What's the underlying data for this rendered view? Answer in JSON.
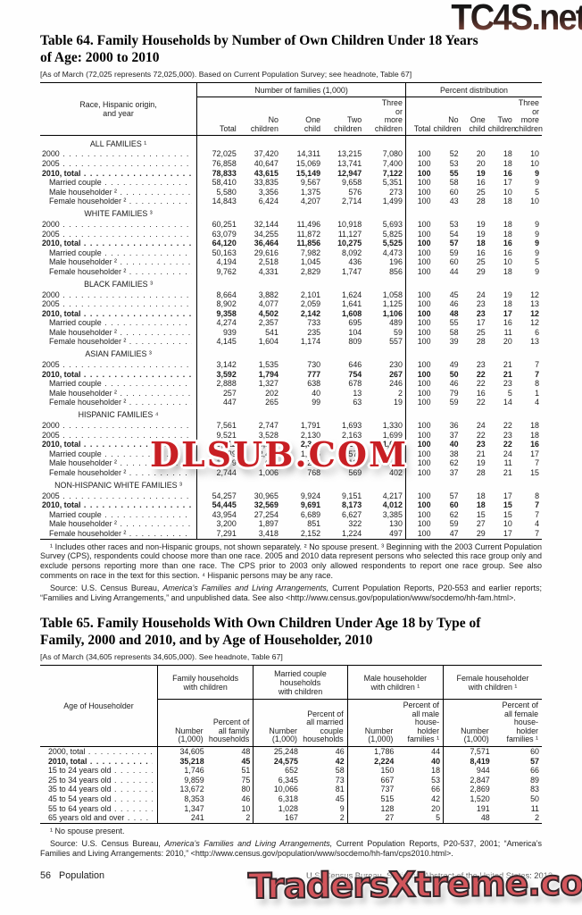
{
  "watermarks": {
    "top": "TC4S.net",
    "middle": "DLSUB.COM",
    "bottom": "TradersXtreme.com"
  },
  "table64": {
    "title": "Table 64. Family Households by Number of Own Children Under 18 Years\nof Age: 2000 to 2010",
    "headnote": "[As of March (72,025 represents 72,025,000). Based on Current Population Survey; see headnote, Table 67]",
    "stub_header": "Race, Hispanic origin,\nand year",
    "group_headers": [
      "Number of families (1,000)",
      "Percent distribution"
    ],
    "col_headers": [
      "Total",
      "No\nchildren",
      "One\nchild",
      "Two\nchildren",
      "Three\nor\nmore\nchildren"
    ],
    "sections": [
      {
        "header": "ALL FAMILIES ¹",
        "rows": [
          {
            "label": "2000",
            "indent": false,
            "bold": false,
            "values": [
              "72,025",
              "37,420",
              "14,311",
              "13,215",
              "7,080",
              "100",
              "52",
              "20",
              "18",
              "10"
            ]
          },
          {
            "label": "2005",
            "indent": false,
            "bold": false,
            "values": [
              "76,858",
              "40,647",
              "15,069",
              "13,741",
              "7,400",
              "100",
              "53",
              "20",
              "18",
              "10"
            ]
          },
          {
            "label": "2010, total",
            "indent": false,
            "bold": true,
            "values": [
              "78,833",
              "43,615",
              "15,149",
              "12,947",
              "7,122",
              "100",
              "55",
              "19",
              "16",
              "9"
            ]
          },
          {
            "label": "Married couple",
            "indent": true,
            "bold": false,
            "values": [
              "58,410",
              "33,835",
              "9,567",
              "9,658",
              "5,351",
              "100",
              "58",
              "16",
              "17",
              "9"
            ]
          },
          {
            "label": "Male householder ²",
            "indent": true,
            "bold": false,
            "values": [
              "5,580",
              "3,356",
              "1,375",
              "576",
              "273",
              "100",
              "60",
              "25",
              "10",
              "5"
            ]
          },
          {
            "label": "Female householder ²",
            "indent": true,
            "bold": false,
            "values": [
              "14,843",
              "6,424",
              "4,207",
              "2,714",
              "1,499",
              "100",
              "43",
              "28",
              "18",
              "10"
            ]
          }
        ]
      },
      {
        "header": "WHITE FAMILIES ³",
        "rows": [
          {
            "label": "2000",
            "indent": false,
            "bold": false,
            "values": [
              "60,251",
              "32,144",
              "11,496",
              "10,918",
              "5,693",
              "100",
              "53",
              "19",
              "18",
              "9"
            ]
          },
          {
            "label": "2005",
            "indent": false,
            "bold": false,
            "values": [
              "63,079",
              "34,255",
              "11,872",
              "11,127",
              "5,825",
              "100",
              "54",
              "19",
              "18",
              "9"
            ]
          },
          {
            "label": "2010, total",
            "indent": false,
            "bold": true,
            "values": [
              "64,120",
              "36,464",
              "11,856",
              "10,275",
              "5,525",
              "100",
              "57",
              "18",
              "16",
              "9"
            ]
          },
          {
            "label": "Married couple",
            "indent": true,
            "bold": false,
            "values": [
              "50,163",
              "29,616",
              "7,982",
              "8,092",
              "4,473",
              "100",
              "59",
              "16",
              "16",
              "9"
            ]
          },
          {
            "label": "Male householder ²",
            "indent": true,
            "bold": false,
            "values": [
              "4,194",
              "2,518",
              "1,045",
              "436",
              "196",
              "100",
              "60",
              "25",
              "10",
              "5"
            ]
          },
          {
            "label": "Female householder ²",
            "indent": true,
            "bold": false,
            "values": [
              "9,762",
              "4,331",
              "2,829",
              "1,747",
              "856",
              "100",
              "44",
              "29",
              "18",
              "9"
            ]
          }
        ]
      },
      {
        "header": "BLACK FAMILIES ³",
        "rows": [
          {
            "label": "2000",
            "indent": false,
            "bold": false,
            "values": [
              "8,664",
              "3,882",
              "2,101",
              "1,624",
              "1,058",
              "100",
              "45",
              "24",
              "19",
              "12"
            ]
          },
          {
            "label": "2005",
            "indent": false,
            "bold": false,
            "values": [
              "8,902",
              "4,077",
              "2,059",
              "1,641",
              "1,125",
              "100",
              "46",
              "23",
              "18",
              "13"
            ]
          },
          {
            "label": "2010, total",
            "indent": false,
            "bold": true,
            "values": [
              "9,358",
              "4,502",
              "2,142",
              "1,608",
              "1,106",
              "100",
              "48",
              "23",
              "17",
              "12"
            ]
          },
          {
            "label": "Married couple",
            "indent": true,
            "bold": false,
            "values": [
              "4,274",
              "2,357",
              "733",
              "695",
              "489",
              "100",
              "55",
              "17",
              "16",
              "12"
            ]
          },
          {
            "label": "Male householder ²",
            "indent": true,
            "bold": false,
            "values": [
              "939",
              "541",
              "235",
              "104",
              "59",
              "100",
              "58",
              "25",
              "11",
              "6"
            ]
          },
          {
            "label": "Female householder ²",
            "indent": true,
            "bold": false,
            "values": [
              "4,145",
              "1,604",
              "1,174",
              "809",
              "557",
              "100",
              "39",
              "28",
              "20",
              "13"
            ]
          }
        ]
      },
      {
        "header": "ASIAN FAMILIES ³",
        "rows": [
          {
            "label": "2005",
            "indent": false,
            "bold": false,
            "values": [
              "3,142",
              "1,535",
              "730",
              "646",
              "230",
              "100",
              "49",
              "23",
              "21",
              "7"
            ]
          },
          {
            "label": "2010, total",
            "indent": false,
            "bold": true,
            "values": [
              "3,592",
              "1,794",
              "777",
              "754",
              "267",
              "100",
              "50",
              "22",
              "21",
              "7"
            ]
          },
          {
            "label": "Married couple",
            "indent": true,
            "bold": false,
            "values": [
              "2,888",
              "1,327",
              "638",
              "678",
              "246",
              "100",
              "46",
              "22",
              "23",
              "8"
            ]
          },
          {
            "label": "Male householder ²",
            "indent": true,
            "bold": false,
            "values": [
              "257",
              "202",
              "40",
              "13",
              "2",
              "100",
              "79",
              "16",
              "5",
              "1"
            ]
          },
          {
            "label": "Female householder ²",
            "indent": true,
            "bold": false,
            "values": [
              "447",
              "265",
              "99",
              "63",
              "19",
              "100",
              "59",
              "22",
              "14",
              "4"
            ]
          }
        ]
      },
      {
        "header": "HISPANIC FAMILIES ⁴",
        "rows": [
          {
            "label": "2000",
            "indent": false,
            "bold": false,
            "values": [
              "7,561",
              "2,747",
              "1,791",
              "1,693",
              "1,330",
              "100",
              "36",
              "24",
              "22",
              "18"
            ]
          },
          {
            "label": "2005",
            "indent": false,
            "bold": false,
            "values": [
              "9,521",
              "3,528",
              "2,130",
              "2,163",
              "1,699",
              "100",
              "37",
              "22",
              "23",
              "18"
            ]
          },
          {
            "label": "2010, total",
            "indent": false,
            "bold": true,
            "values": [
              "10,412",
              "4,173",
              "2,344",
              "2,269",
              "1,626",
              "100",
              "40",
              "23",
              "22",
              "16"
            ]
          },
          {
            "label": "Married couple",
            "indent": true,
            "bold": false,
            "values": [
              "6,589",
              "2,497",
              "1,366",
              "1,576",
              "1,149",
              "100",
              "38",
              "21",
              "24",
              "17"
            ]
          },
          {
            "label": "Male householder ²",
            "indent": true,
            "bold": false,
            "values": [
              "1,079",
              "670",
              "210",
              "124",
              "75",
              "100",
              "62",
              "19",
              "11",
              "7"
            ]
          },
          {
            "label": "Female householder ²",
            "indent": true,
            "bold": false,
            "values": [
              "2,744",
              "1,006",
              "768",
              "569",
              "402",
              "100",
              "37",
              "28",
              "21",
              "15"
            ]
          }
        ]
      },
      {
        "header": "NON-HISPANIC WHITE FAMILIES ³",
        "rows": [
          {
            "label": "2005",
            "indent": false,
            "bold": false,
            "values": [
              "54,257",
              "30,965",
              "9,924",
              "9,151",
              "4,217",
              "100",
              "57",
              "18",
              "17",
              "8"
            ]
          },
          {
            "label": "2010, total",
            "indent": false,
            "bold": true,
            "values": [
              "54,445",
              "32,569",
              "9,691",
              "8,173",
              "4,012",
              "100",
              "60",
              "18",
              "15",
              "7"
            ]
          },
          {
            "label": "Married couple",
            "indent": true,
            "bold": false,
            "values": [
              "43,954",
              "27,254",
              "6,689",
              "6,627",
              "3,385",
              "100",
              "62",
              "15",
              "15",
              "7"
            ]
          },
          {
            "label": "Male householder ²",
            "indent": true,
            "bold": false,
            "values": [
              "3,200",
              "1,897",
              "851",
              "322",
              "130",
              "100",
              "59",
              "27",
              "10",
              "4"
            ]
          },
          {
            "label": "Female householder ²",
            "indent": true,
            "bold": false,
            "values": [
              "7,291",
              "3,418",
              "2,152",
              "1,224",
              "497",
              "100",
              "47",
              "29",
              "17",
              "7"
            ]
          }
        ]
      }
    ],
    "footnote": "¹ Includes other races and non-Hispanic groups, not shown separately. ² No spouse present. ³ Beginning with the 2003 Current Population Survey (CPS), respondents could choose more than one race. 2005 and 2010 data represent persons who selected this race group only and exclude persons reporting more than one race. The CPS prior to 2003 only allowed respondents to report one race group. See also comments on race in the text for this section. ⁴ Hispanic persons may be any race.",
    "source": {
      "prefix": "Source: U.S. Census Bureau, ",
      "italic": "America’s Families and Living Arrangements,",
      "suffix": " Current Population Reports, P20-553 and earlier reports; “Families and Living Arrangements,” and unpublished data. See also <http://www.census.gov/population/www/socdemo/hh-fam.html>."
    }
  },
  "table65": {
    "title": "Table 65. Family Households With Own Children Under Age 18 by Type of\nFamily, 2000 and 2010, and by Age of Householder, 2010",
    "headnote": "[As of March (34,605 represents 34,605,000). See headnote, Table 67]",
    "stub_header": "Age of Householder",
    "group_headers": [
      "Family households\nwith children",
      "Married couple\nhouseholds\nwith children",
      "Male householder\nwith children ¹",
      "Female householder\nwith children ¹"
    ],
    "sub_headers": [
      "Number\n(1,000)",
      "Percent of\nall family\nhouseholds",
      "Number\n(1,000)",
      "Percent of\nall married\ncouple\nhouseholds",
      "Number\n(1,000)",
      "Percent of\nall male\nhouse-\nholder\nfamilies ¹",
      "Number\n(1,000)",
      "Percent of\nall female\nhouse-\nholder\nfamilies ¹"
    ],
    "rows": [
      {
        "label": "2000, total",
        "bold": false,
        "values": [
          "34,605",
          "48",
          "25,248",
          "46",
          "1,786",
          "44",
          "7,571",
          "60"
        ]
      },
      {
        "label": "2010, total",
        "bold": true,
        "values": [
          "35,218",
          "45",
          "24,575",
          "42",
          "2,224",
          "40",
          "8,419",
          "57"
        ]
      },
      {
        "label": "15 to 24 years old",
        "bold": false,
        "values": [
          "1,746",
          "51",
          "652",
          "58",
          "150",
          "18",
          "944",
          "66"
        ]
      },
      {
        "label": "25 to 34 years old",
        "bold": false,
        "values": [
          "9,859",
          "75",
          "6,345",
          "73",
          "667",
          "53",
          "2,847",
          "89"
        ]
      },
      {
        "label": "35 to 44 years old",
        "bold": false,
        "values": [
          "13,672",
          "80",
          "10,066",
          "81",
          "737",
          "66",
          "2,869",
          "83"
        ]
      },
      {
        "label": "45 to 54 years old",
        "bold": false,
        "values": [
          "8,353",
          "46",
          "6,318",
          "45",
          "515",
          "42",
          "1,520",
          "50"
        ]
      },
      {
        "label": "55 to 64 years old",
        "bold": false,
        "values": [
          "1,347",
          "10",
          "1,028",
          "9",
          "128",
          "20",
          "191",
          "11"
        ]
      },
      {
        "label": "65 years old and over",
        "bold": false,
        "values": [
          "241",
          "2",
          "167",
          "2",
          "27",
          "5",
          "48",
          "2"
        ]
      }
    ],
    "footnote": "¹ No spouse present.",
    "source": {
      "prefix": "Source: U.S. Census Bureau, ",
      "italic": "America’s Families and Living Arrangements,",
      "suffix": " Current Population Reports, P20-537, 2001; “America’s Families and Living Arrangements: 2010,” <http://www.census.gov/population/www/socdemo/hh-fam/cps2010.html>."
    }
  },
  "footer": {
    "page": "56",
    "section": "Population",
    "credit": "U.S. Census Bureau, Statistical Abstract of the United States: 2012"
  }
}
